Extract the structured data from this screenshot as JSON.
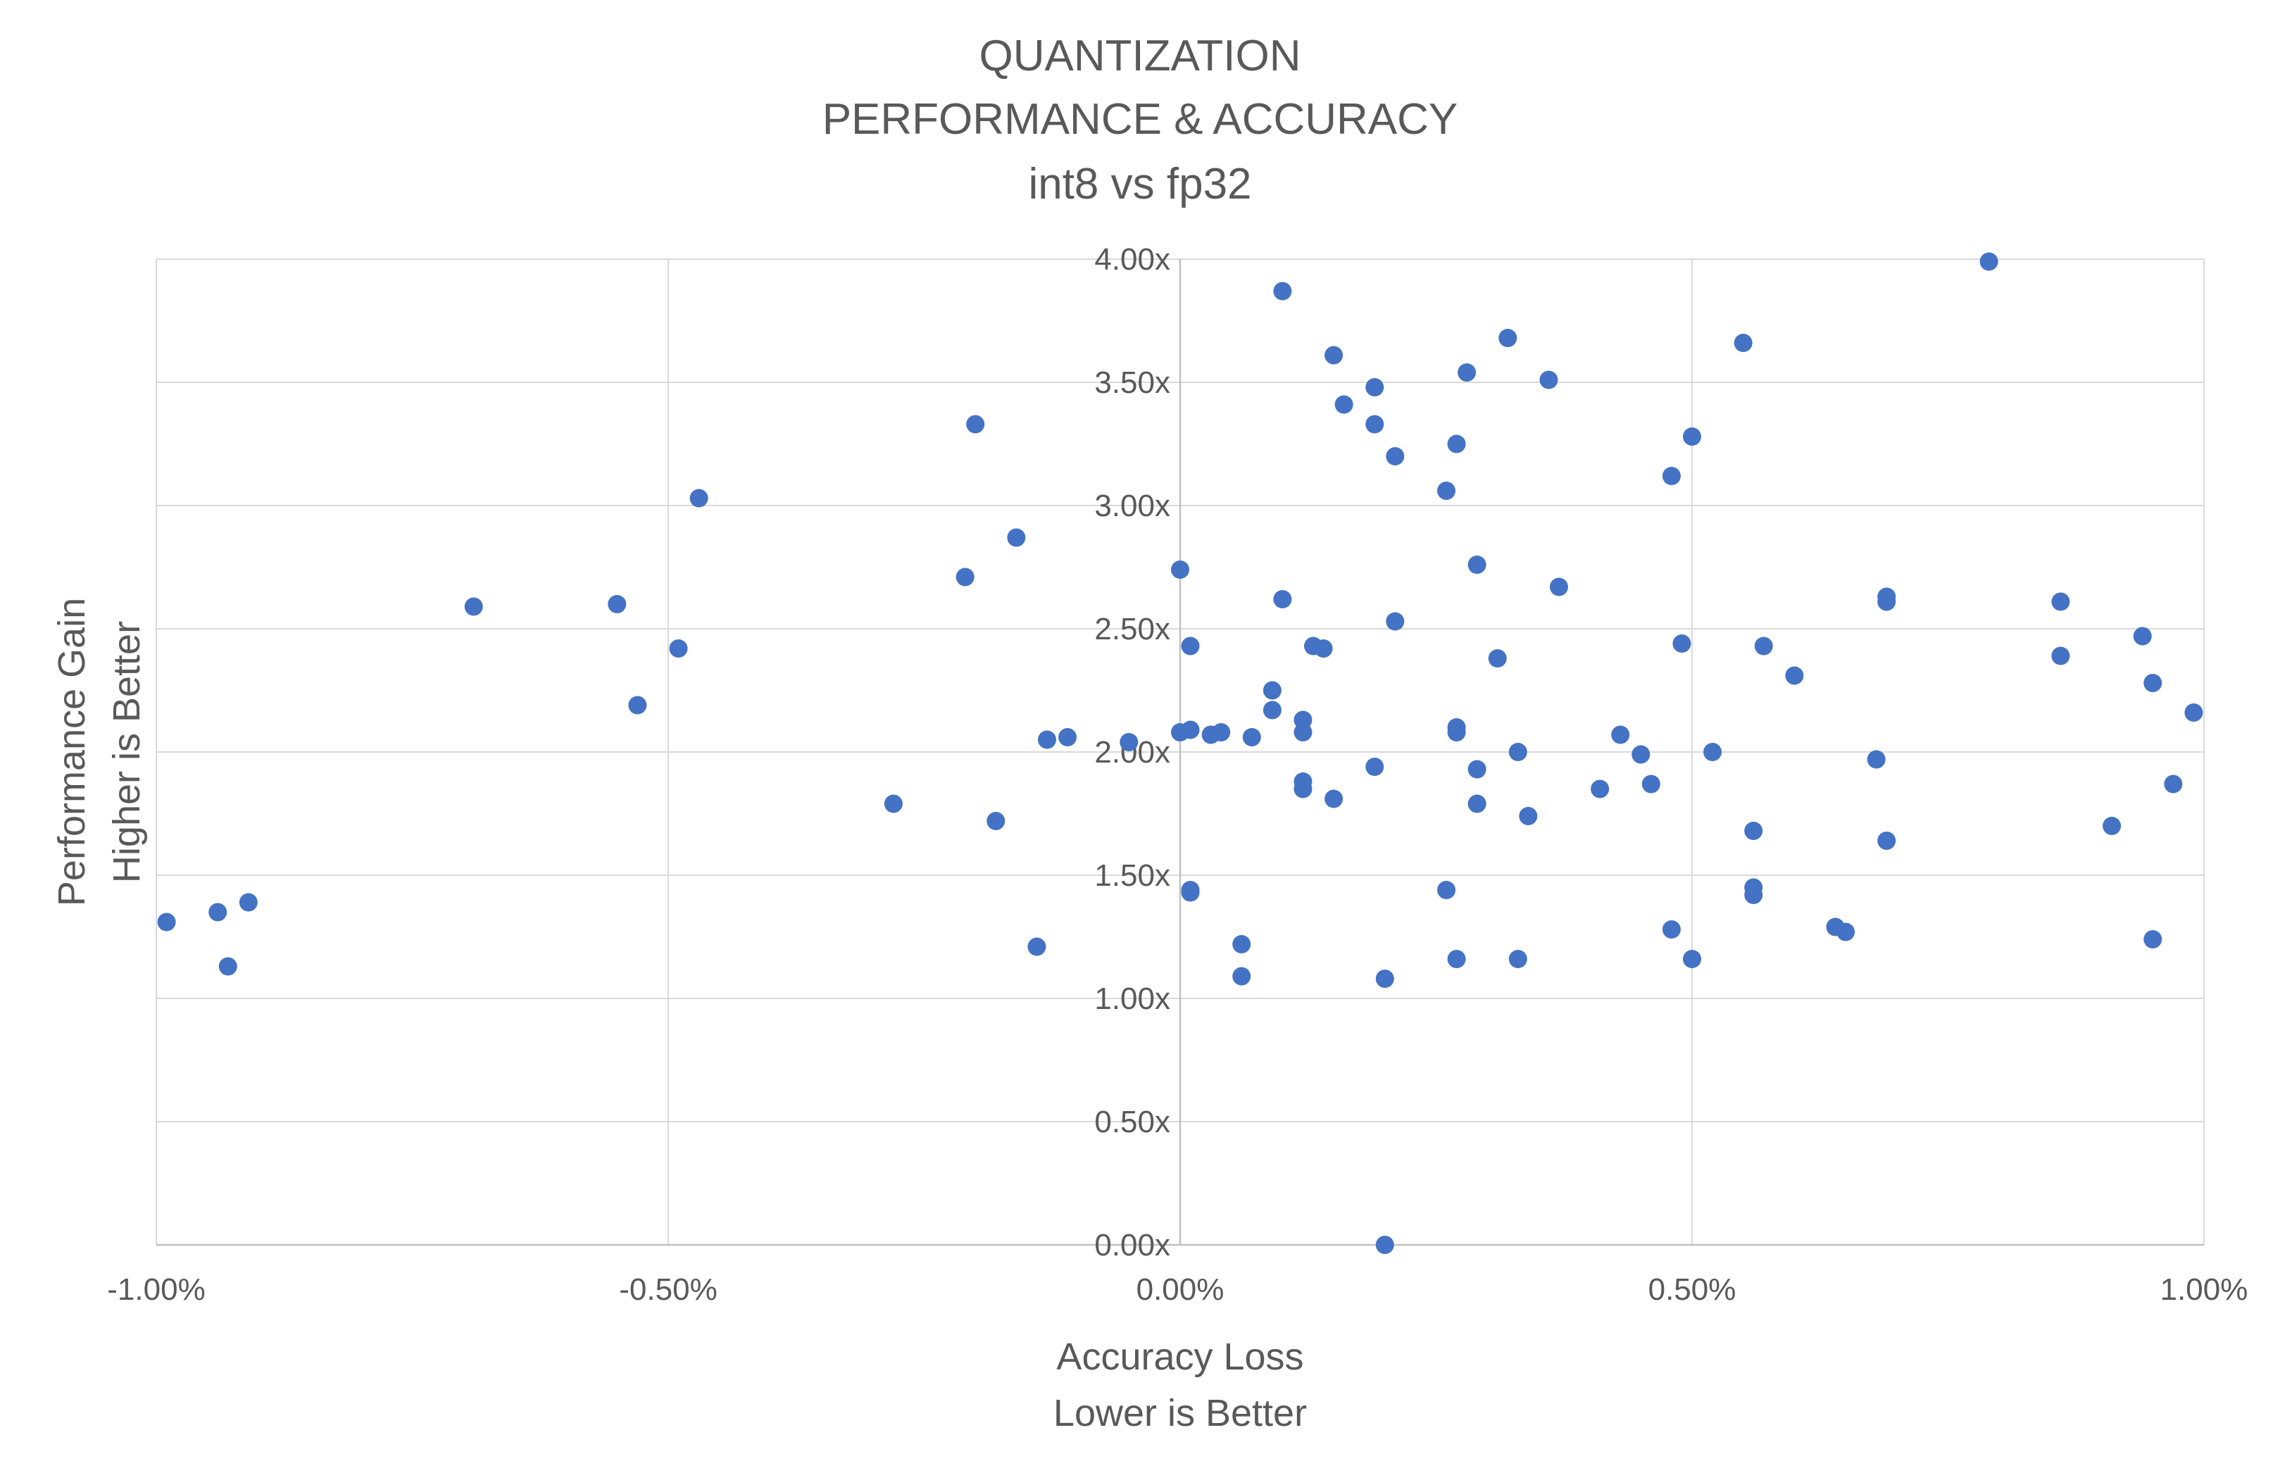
{
  "chart_data": {
    "type": "scatter",
    "title": [
      "QUANTIZATION",
      "PERFORMANCE & ACCURACY",
      "int8 vs fp32"
    ],
    "xlabel": [
      "Accuracy Loss",
      "Lower is Better"
    ],
    "ylabel": [
      "Performance Gain",
      "Higher is Better"
    ],
    "xlim": [
      -0.01,
      0.01
    ],
    "ylim": [
      0,
      4
    ],
    "x_ticks": [
      -0.01,
      -0.005,
      0,
      0.005,
      0.01
    ],
    "x_tick_labels": [
      "-1.00%",
      "-0.50%",
      "0.00%",
      "0.50%",
      "1.00%"
    ],
    "y_ticks": [
      0,
      0.5,
      1,
      1.5,
      2,
      2.5,
      3,
      3.5,
      4
    ],
    "y_tick_labels": [
      "0.00x",
      "0.50x",
      "1.00x",
      "1.50x",
      "2.00x",
      "2.50x",
      "3.00x",
      "3.50x",
      "4.00x"
    ],
    "grid": true,
    "point_color": "#4472c4",
    "series": [
      {
        "points": [
          [
            -0.0099,
            1.31
          ],
          [
            -0.0094,
            1.35
          ],
          [
            -0.0093,
            1.13
          ],
          [
            -0.0091,
            1.39
          ],
          [
            -0.0069,
            2.59
          ],
          [
            -0.0055,
            2.6
          ],
          [
            -0.0053,
            2.19
          ],
          [
            -0.0049,
            2.42
          ],
          [
            -0.0047,
            3.03
          ],
          [
            -0.0028,
            1.79
          ],
          [
            -0.0021,
            2.71
          ],
          [
            -0.002,
            3.33
          ],
          [
            -0.0018,
            1.72
          ],
          [
            -0.0016,
            2.87
          ],
          [
            -0.0014,
            1.21
          ],
          [
            -0.0013,
            2.05
          ],
          [
            -0.0011,
            2.06
          ],
          [
            -0.0005,
            2.04
          ],
          [
            0.0,
            2.74
          ],
          [
            0.0,
            2.08
          ],
          [
            0.0001,
            2.09
          ],
          [
            0.0001,
            2.43
          ],
          [
            0.0001,
            1.44
          ],
          [
            0.0001,
            1.43
          ],
          [
            0.0003,
            2.07
          ],
          [
            0.0004,
            2.08
          ],
          [
            0.0006,
            1.22
          ],
          [
            0.0006,
            1.09
          ],
          [
            0.0007,
            2.06
          ],
          [
            0.0009,
            2.25
          ],
          [
            0.0009,
            2.17
          ],
          [
            0.001,
            2.62
          ],
          [
            0.001,
            3.87
          ],
          [
            0.0012,
            2.13
          ],
          [
            0.0012,
            2.08
          ],
          [
            0.0012,
            1.88
          ],
          [
            0.0012,
            1.85
          ],
          [
            0.0013,
            2.43
          ],
          [
            0.0014,
            2.42
          ],
          [
            0.0015,
            3.61
          ],
          [
            0.0015,
            1.81
          ],
          [
            0.0016,
            3.41
          ],
          [
            0.0019,
            3.48
          ],
          [
            0.0019,
            3.33
          ],
          [
            0.0019,
            1.94
          ],
          [
            0.002,
            1.08
          ],
          [
            0.002,
            0.0
          ],
          [
            0.0021,
            3.2
          ],
          [
            0.0021,
            2.53
          ],
          [
            0.0026,
            3.06
          ],
          [
            0.0026,
            1.44
          ],
          [
            0.0027,
            2.1
          ],
          [
            0.0027,
            2.08
          ],
          [
            0.0027,
            3.25
          ],
          [
            0.0028,
            3.54
          ],
          [
            0.0027,
            1.16
          ],
          [
            0.0029,
            2.76
          ],
          [
            0.0029,
            1.79
          ],
          [
            0.0029,
            1.93
          ],
          [
            0.0031,
            2.38
          ],
          [
            0.0032,
            3.68
          ],
          [
            0.0033,
            2.0
          ],
          [
            0.0033,
            1.16
          ],
          [
            0.0034,
            1.74
          ],
          [
            0.0036,
            3.51
          ],
          [
            0.0037,
            2.67
          ],
          [
            0.0041,
            1.85
          ],
          [
            0.0043,
            2.07
          ],
          [
            0.0045,
            1.99
          ],
          [
            0.0046,
            1.87
          ],
          [
            0.0048,
            3.12
          ],
          [
            0.0048,
            1.28
          ],
          [
            0.0049,
            2.44
          ],
          [
            0.005,
            3.28
          ],
          [
            0.005,
            1.16
          ],
          [
            0.0052,
            2.0
          ],
          [
            0.0055,
            3.66
          ],
          [
            0.0056,
            1.68
          ],
          [
            0.0056,
            1.45
          ],
          [
            0.0056,
            1.42
          ],
          [
            0.0057,
            2.43
          ],
          [
            0.006,
            2.31
          ],
          [
            0.0064,
            1.29
          ],
          [
            0.0065,
            1.27
          ],
          [
            0.0068,
            1.97
          ],
          [
            0.0069,
            2.63
          ],
          [
            0.0069,
            2.61
          ],
          [
            0.0069,
            1.64
          ],
          [
            0.0079,
            3.99
          ],
          [
            0.0086,
            2.61
          ],
          [
            0.0086,
            2.39
          ],
          [
            0.0091,
            1.7
          ],
          [
            0.0094,
            2.47
          ],
          [
            0.0095,
            2.28
          ],
          [
            0.0095,
            1.24
          ],
          [
            0.0097,
            1.87
          ],
          [
            0.0099,
            2.16
          ]
        ]
      }
    ]
  }
}
